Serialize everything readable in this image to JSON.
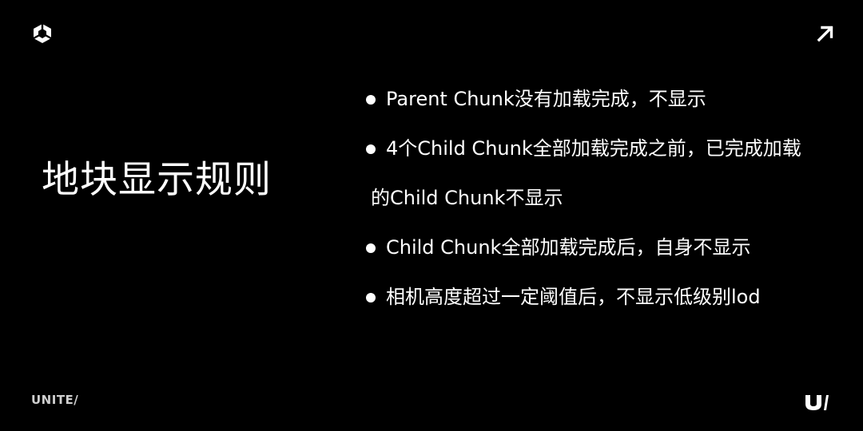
{
  "slide": {
    "title": "地块显示规则",
    "bullets": [
      {
        "lines": [
          "Parent Chunk没有加载完成，不显示"
        ]
      },
      {
        "lines": [
          "4个Child Chunk全部加载完成之前，已完成加载",
          "的Child Chunk不显示"
        ]
      },
      {
        "lines": [
          "Child Chunk全部加载完成后，自身不显示"
        ]
      },
      {
        "lines": [
          "相机高度超过一定阈值后，不显示低级别lod"
        ]
      }
    ]
  },
  "brand": {
    "footer_logo_text": "UNITE/",
    "top_left_icon": "unity-cube-icon",
    "top_right_icon": "arrow-up-right-icon",
    "bottom_right_icon": "unite-u-mark-icon"
  },
  "colors": {
    "background": "#000000",
    "text": "#ffffff",
    "footer_logo": "#cfcfcf"
  }
}
